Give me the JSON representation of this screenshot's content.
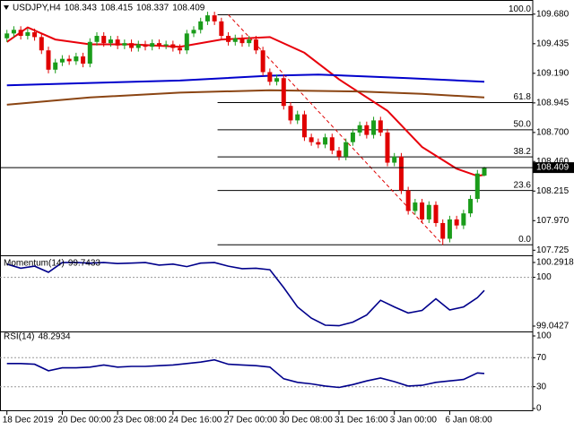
{
  "chart_data": [
    {
      "type": "candlestick",
      "symbol": "USDJPY,H4",
      "up_color": "#1a9c1a",
      "down_color": "#e00000",
      "xlim": [
        -1,
        76
      ],
      "xticks": [
        {
          "value": 0,
          "label": "18 Dec 2019"
        },
        {
          "value": 8,
          "label": "20 Dec 00:00"
        },
        {
          "value": 16,
          "label": "23 Dec 08:00"
        },
        {
          "value": 24,
          "label": "24 Dec 16:00"
        },
        {
          "value": 32,
          "label": "27 Dec 00:00"
        },
        {
          "value": 40,
          "label": "30 Dec 08:00"
        },
        {
          "value": 48,
          "label": "31 Dec 16:00"
        },
        {
          "value": 56,
          "label": "3 Jan 00:00"
        },
        {
          "value": 64,
          "label": "6 Jan 08:00"
        }
      ],
      "ylim": [
        107.705,
        109.76
      ],
      "yticks": [
        {
          "value": 109.68,
          "label": "109.680"
        },
        109.435,
        {
          "value": 109.19,
          "label": "109.190"
        },
        108.945,
        {
          "value": 108.7,
          "label": "108.700"
        },
        {
          "value": 108.46,
          "label": "108.460"
        },
        108.215,
        {
          "value": 107.97,
          "label": "107.970"
        },
        107.725
      ],
      "candles": [
        [
          109.48,
          109.55,
          109.45,
          109.52
        ],
        [
          109.52,
          109.58,
          109.49,
          109.55
        ],
        [
          109.55,
          109.58,
          109.47,
          109.5
        ],
        [
          109.5,
          109.56,
          109.47,
          109.53
        ],
        [
          109.53,
          109.56,
          109.46,
          109.49
        ],
        [
          109.49,
          109.52,
          109.35,
          109.38
        ],
        [
          109.38,
          109.41,
          109.19,
          109.22
        ],
        [
          109.22,
          109.31,
          109.19,
          109.28
        ],
        [
          109.28,
          109.34,
          109.25,
          109.31
        ],
        [
          109.31,
          109.34,
          109.26,
          109.29
        ],
        [
          109.29,
          109.36,
          109.26,
          109.33
        ],
        [
          109.33,
          109.36,
          109.24,
          109.27
        ],
        [
          109.27,
          109.48,
          109.24,
          109.45
        ],
        [
          109.45,
          109.53,
          109.42,
          109.5
        ],
        [
          109.5,
          109.53,
          109.41,
          109.44
        ],
        [
          109.44,
          109.5,
          109.41,
          109.47
        ],
        [
          109.47,
          109.5,
          109.39,
          109.42
        ],
        [
          109.42,
          109.47,
          109.39,
          109.44
        ],
        [
          109.44,
          109.47,
          109.37,
          109.4
        ],
        [
          109.4,
          109.46,
          109.37,
          109.43
        ],
        [
          109.43,
          109.46,
          109.38,
          109.41
        ],
        [
          109.41,
          109.47,
          109.38,
          109.44
        ],
        [
          109.44,
          109.47,
          109.39,
          109.42
        ],
        [
          109.42,
          109.46,
          109.39,
          109.43
        ],
        [
          109.43,
          109.46,
          109.37,
          109.4
        ],
        [
          109.4,
          109.43,
          109.35,
          109.38
        ],
        [
          109.38,
          109.55,
          109.35,
          109.52
        ],
        [
          109.52,
          109.58,
          109.49,
          109.55
        ],
        [
          109.55,
          109.65,
          109.52,
          109.62
        ],
        [
          109.62,
          109.7,
          109.59,
          109.67
        ],
        [
          109.67,
          109.7,
          109.59,
          109.62
        ],
        [
          109.62,
          109.65,
          109.47,
          109.5
        ],
        [
          109.5,
          109.53,
          109.42,
          109.45
        ],
        [
          109.45,
          109.51,
          109.42,
          109.48
        ],
        [
          109.48,
          109.51,
          109.41,
          109.44
        ],
        [
          109.44,
          109.5,
          109.41,
          109.47
        ],
        [
          109.47,
          109.5,
          109.35,
          109.38
        ],
        [
          109.38,
          109.41,
          109.17,
          109.2
        ],
        [
          109.2,
          109.23,
          109.09,
          109.12
        ],
        [
          109.12,
          109.18,
          109.09,
          109.15
        ],
        [
          109.15,
          109.18,
          108.89,
          108.92
        ],
        [
          108.92,
          108.95,
          108.77,
          108.8
        ],
        [
          108.8,
          108.88,
          108.77,
          108.85
        ],
        [
          108.85,
          108.88,
          108.63,
          108.66
        ],
        [
          108.66,
          108.69,
          108.59,
          108.62
        ],
        [
          108.62,
          108.65,
          108.57,
          108.6
        ],
        [
          108.6,
          108.69,
          108.57,
          108.66
        ],
        [
          108.66,
          108.69,
          108.52,
          108.55
        ],
        [
          108.55,
          108.58,
          108.47,
          108.5
        ],
        [
          108.5,
          108.65,
          108.47,
          108.62
        ],
        [
          108.62,
          108.73,
          108.59,
          108.7
        ],
        [
          108.7,
          108.79,
          108.67,
          108.76
        ],
        [
          108.76,
          108.79,
          108.65,
          108.68
        ],
        [
          108.68,
          108.83,
          108.65,
          108.8
        ],
        [
          108.8,
          108.83,
          108.67,
          108.7
        ],
        [
          108.7,
          108.73,
          108.42,
          108.45
        ],
        [
          108.45,
          108.53,
          108.42,
          108.5
        ],
        [
          108.5,
          108.53,
          108.19,
          108.22
        ],
        [
          108.22,
          108.25,
          108.02,
          108.05
        ],
        [
          108.05,
          108.15,
          108.02,
          108.12
        ],
        [
          108.12,
          108.15,
          107.95,
          107.98
        ],
        [
          107.98,
          108.13,
          107.95,
          108.1
        ],
        [
          108.1,
          108.13,
          107.92,
          107.95
        ],
        [
          107.95,
          107.98,
          107.77,
          107.82
        ],
        [
          107.82,
          108.01,
          107.79,
          107.98
        ],
        [
          107.98,
          108.01,
          107.9,
          107.93
        ],
        [
          107.93,
          108.06,
          107.9,
          108.03
        ],
        [
          108.03,
          108.18,
          108.0,
          108.15
        ],
        [
          108.15,
          108.39,
          108.12,
          108.36
        ],
        [
          108.343,
          108.415,
          108.337,
          108.409
        ]
      ],
      "ma_lines": [
        {
          "color": "#e8000b",
          "x": [
            0,
            3,
            7,
            12,
            18,
            25,
            31,
            38,
            43,
            48,
            55,
            60,
            65,
            68,
            69
          ],
          "values": [
            109.45,
            109.57,
            109.47,
            109.43,
            109.43,
            109.41,
            109.47,
            109.49,
            109.36,
            109.14,
            108.88,
            108.58,
            108.4,
            108.34,
            108.35
          ]
        },
        {
          "color": "#0000cc",
          "x": [
            0,
            12,
            25,
            38,
            45,
            58,
            69
          ],
          "values": [
            109.09,
            109.11,
            109.13,
            109.17,
            109.18,
            109.15,
            109.12
          ]
        },
        {
          "color": "#8b4513",
          "x": [
            0,
            12,
            25,
            38,
            51,
            60,
            69
          ],
          "values": [
            108.93,
            108.99,
            109.03,
            109.05,
            109.04,
            109.02,
            108.99
          ]
        }
      ],
      "fib": {
        "color": "#000000",
        "trend_color": "#e00000",
        "x": [
          32,
          63
        ],
        "high": 109.675,
        "low": 107.77,
        "levels": [
          {
            "value": 100,
            "label": "100.0"
          },
          {
            "value": 61.8,
            "label": "61.8"
          },
          {
            "value": 50,
            "label": "50.0"
          },
          {
            "value": 38.2,
            "label": "38.2"
          },
          {
            "value": 23.6,
            "label": "23.6"
          },
          {
            "value": 0,
            "label": "0.0"
          }
        ]
      }
    },
    {
      "type": "line",
      "title": "Momentum(14)",
      "ylim": [
        99.0427,
        100.2918
      ],
      "yticks": [
        100.2918,
        100,
        99.0427
      ],
      "ref_lines": [
        100
      ],
      "series": [
        {
          "color": "#00008b",
          "x": [
            0,
            2,
            4,
            6,
            8,
            10,
            12,
            14,
            16,
            18,
            20,
            22,
            24,
            26,
            28,
            30,
            32,
            34,
            36,
            38,
            40,
            42,
            44,
            46,
            48,
            50,
            52,
            54,
            56,
            58,
            60,
            62,
            64,
            66,
            68,
            69
          ],
          "values": [
            100.26,
            100.18,
            100.22,
            100.1,
            100.29,
            100.29,
            100.28,
            100.29,
            100.27,
            100.28,
            100.29,
            100.24,
            100.26,
            100.21,
            100.28,
            100.29,
            100.22,
            100.17,
            100.18,
            100.15,
            99.8,
            99.42,
            99.2,
            99.06,
            99.05,
            99.12,
            99.26,
            99.55,
            99.42,
            99.3,
            99.35,
            99.58,
            99.36,
            99.42,
            99.6,
            99.7433
          ]
        }
      ]
    },
    {
      "type": "line",
      "title": "RSI(14)",
      "ylim": [
        0,
        100
      ],
      "yticks": [
        100,
        70,
        30,
        0
      ],
      "ref_lines": [
        70,
        30
      ],
      "series": [
        {
          "color": "#00008b",
          "x": [
            0,
            2,
            4,
            6,
            8,
            10,
            12,
            14,
            16,
            18,
            20,
            22,
            24,
            26,
            28,
            30,
            32,
            34,
            36,
            38,
            40,
            42,
            44,
            46,
            48,
            50,
            52,
            54,
            56,
            58,
            60,
            62,
            64,
            66,
            68,
            69
          ],
          "values": [
            62,
            62,
            61,
            52,
            56,
            56,
            57,
            60,
            57,
            58,
            58,
            59,
            60,
            62,
            64,
            67,
            61,
            60,
            59,
            57,
            41,
            36,
            34,
            31,
            29,
            33,
            38,
            42,
            37,
            31,
            32,
            36,
            38,
            40,
            49,
            48.2934
          ]
        }
      ]
    }
  ]
}
